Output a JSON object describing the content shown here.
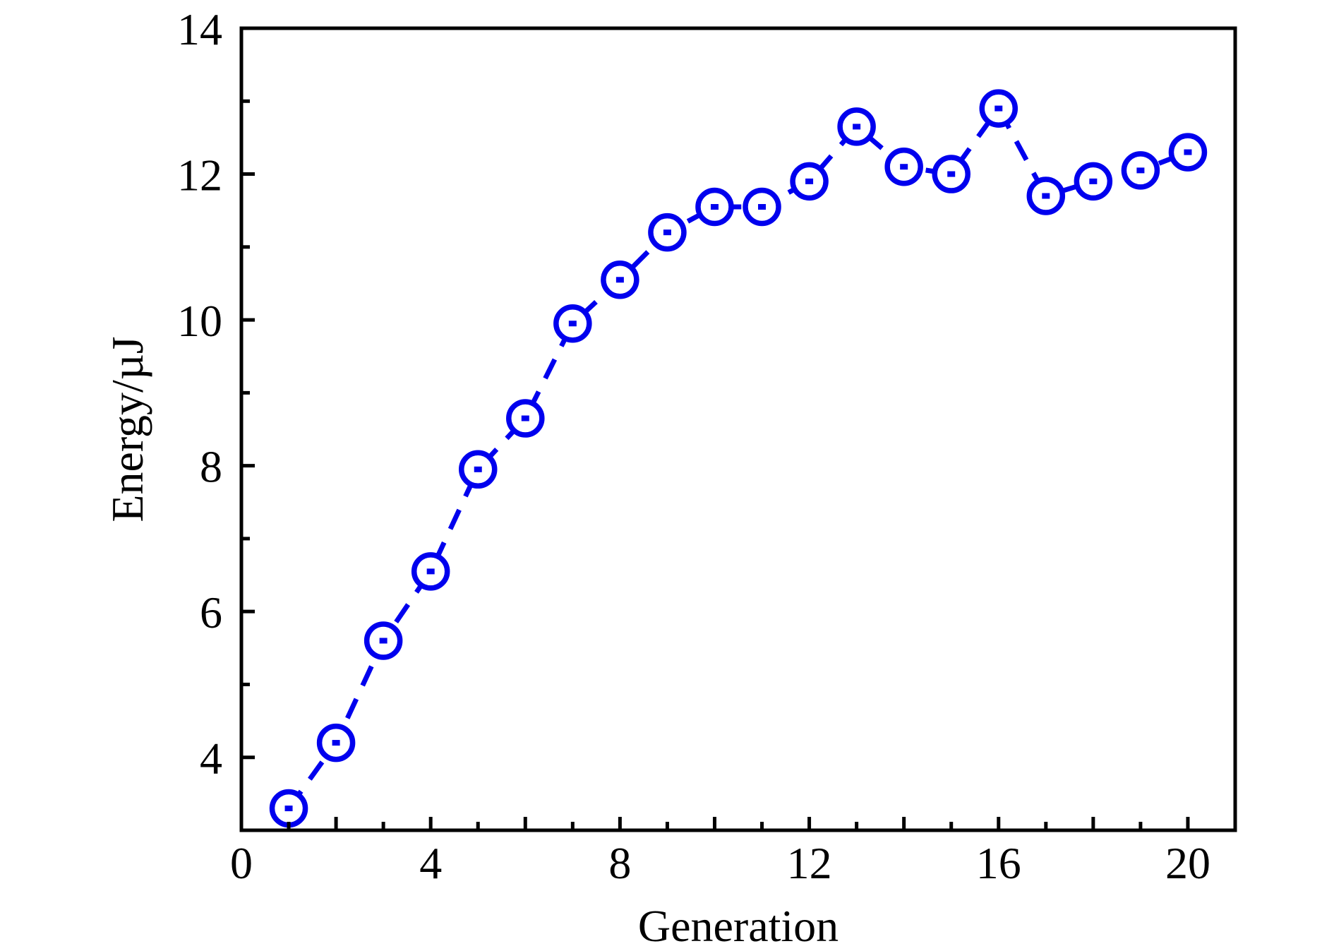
{
  "chart_data": {
    "type": "line",
    "title": "",
    "xlabel": "Generation",
    "ylabel": "Energy/µJ",
    "series_name": "Energy",
    "x": [
      1,
      2,
      3,
      4,
      5,
      6,
      7,
      8,
      9,
      10,
      11,
      12,
      13,
      14,
      15,
      16,
      17,
      18,
      19,
      20
    ],
    "y": [
      3.3,
      4.2,
      5.6,
      6.55,
      7.95,
      8.65,
      9.95,
      10.55,
      11.2,
      11.55,
      11.55,
      11.9,
      12.65,
      12.1,
      12.0,
      12.9,
      11.7,
      11.9,
      12.05,
      12.3
    ],
    "xlim": [
      0,
      21
    ],
    "ylim": [
      3,
      14
    ],
    "x_label_positions": [
      0,
      4,
      8,
      12,
      16,
      20
    ],
    "x_labels": [
      "0",
      "4",
      "8",
      "12",
      "16",
      "20"
    ],
    "y_label_positions": [
      4,
      6,
      8,
      10,
      12,
      14
    ],
    "y_labels": [
      "4",
      "6",
      "8",
      "10",
      "12",
      "14"
    ],
    "x_major_ticks": [
      2,
      4,
      6,
      8,
      10,
      12,
      14,
      16,
      18,
      20
    ],
    "x_minor_ticks": [
      1,
      3,
      5,
      7,
      9,
      11,
      13,
      15,
      17,
      19
    ],
    "y_major_ticks": [
      4,
      6,
      8,
      10,
      12
    ],
    "y_minor_ticks": [
      5,
      7,
      9,
      11,
      13
    ],
    "grid": false,
    "legend": "none",
    "line_style": "dashed",
    "marker": "open-circle-center-dot",
    "colors": {
      "series": "#0000ee",
      "axis": "#000000",
      "text": "#000000",
      "background": "#ffffff"
    }
  }
}
